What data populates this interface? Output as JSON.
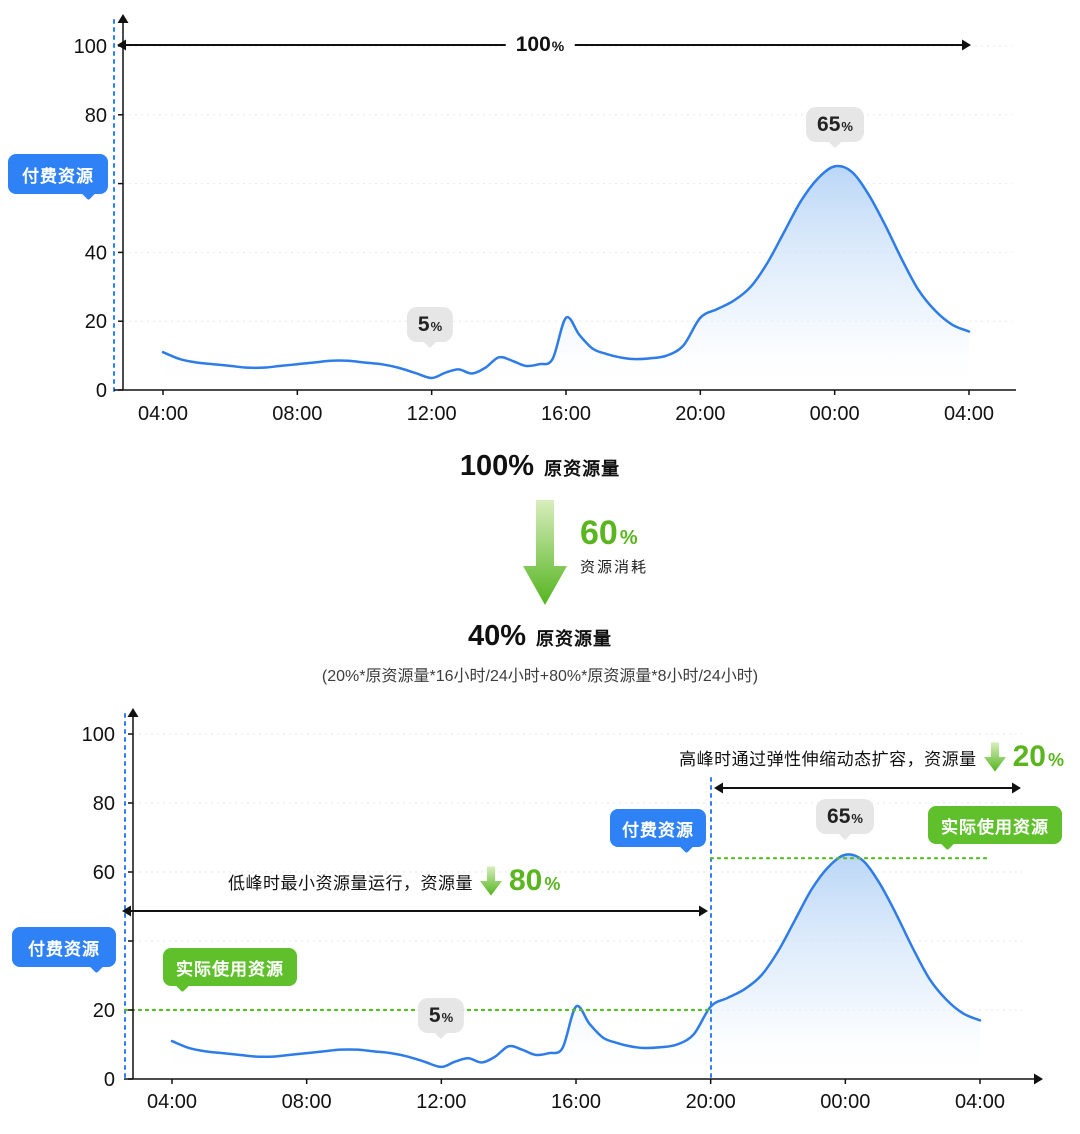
{
  "colors": {
    "line": "#2e7ce8",
    "area_top": "#b7d4f6",
    "grid": "#e7e7e7",
    "axis": "#111111",
    "blue_badge": "#2f82f6",
    "green_badge": "#5fc02c",
    "green_text": "#5ab51f",
    "tooltip_bg": "#e6e6e6",
    "dashed_blue": "#2f7ff7",
    "dotted_green": "#57bb23"
  },
  "middle": {
    "before": {
      "value": "100%",
      "label": "原资源量"
    },
    "consumption": {
      "value": "60",
      "unit": "%",
      "label": "资源消耗"
    },
    "after": {
      "value": "40%",
      "label": "原资源量"
    },
    "formula": "(20%*原资源量*16小时/24小时+80%*原资源量*8小时/24小时)"
  },
  "chart_data": [
    {
      "name": "original-paid-resource",
      "type": "area",
      "x_tick_labels": [
        "04:00",
        "08:00",
        "12:00",
        "16:00",
        "20:00",
        "00:00",
        "04:00"
      ],
      "x_tick_hours": [
        4,
        8,
        12,
        16,
        20,
        24,
        28
      ],
      "xlim_hours": [
        4,
        28
      ],
      "y_ticks": [
        0,
        20,
        40,
        60,
        80,
        100
      ],
      "ylim": [
        0,
        100
      ],
      "grid": true,
      "x_hours": [
        4,
        4.5,
        5,
        5.5,
        6,
        6.5,
        7,
        7.5,
        8,
        8.5,
        9,
        9.5,
        10,
        10.5,
        11,
        11.5,
        12,
        12.4,
        12.8,
        13.2,
        13.6,
        14,
        14.4,
        14.8,
        15.2,
        15.6,
        16,
        16.4,
        16.8,
        17.2,
        17.6,
        18,
        18.5,
        19,
        19.5,
        20,
        20.5,
        21,
        21.5,
        22,
        22.5,
        23,
        23.5,
        24,
        24.5,
        25,
        25.5,
        26,
        26.5,
        27,
        27.5,
        28
      ],
      "values": [
        11,
        9,
        8,
        7.5,
        7,
        6.5,
        6.5,
        7,
        7.5,
        8,
        8.5,
        8.5,
        8,
        7.5,
        6.5,
        5,
        3.5,
        5,
        6,
        4.8,
        6.5,
        9.5,
        8.5,
        7,
        7.5,
        9,
        21,
        16,
        12,
        10.5,
        9.5,
        9,
        9.2,
        10,
        13,
        21,
        23.5,
        26,
        30,
        37,
        46,
        55,
        61.5,
        65,
        63.5,
        57,
        48,
        38,
        29,
        23,
        19,
        17
      ],
      "annotations": {
        "span_arrow": {
          "value": "100",
          "unit": "%"
        },
        "paid_badge": "付费资源",
        "tooltip_low": {
          "value": "5",
          "unit": "%"
        },
        "tooltip_peak": {
          "value": "65",
          "unit": "%"
        }
      }
    },
    {
      "name": "elastic-paid-resource",
      "type": "area",
      "x_tick_labels": [
        "04:00",
        "08:00",
        "12:00",
        "16:00",
        "20:00",
        "00:00",
        "04:00"
      ],
      "x_tick_hours": [
        4,
        8,
        12,
        16,
        20,
        24,
        28
      ],
      "xlim_hours": [
        4,
        28
      ],
      "y_ticks": [
        0,
        20,
        40,
        60,
        80,
        100
      ],
      "ylim": [
        0,
        100
      ],
      "grid": true,
      "x_hours": [
        4,
        4.5,
        5,
        5.5,
        6,
        6.5,
        7,
        7.5,
        8,
        8.5,
        9,
        9.5,
        10,
        10.5,
        11,
        11.5,
        12,
        12.4,
        12.8,
        13.2,
        13.6,
        14,
        14.4,
        14.8,
        15.2,
        15.6,
        16,
        16.4,
        16.8,
        17.2,
        17.6,
        18,
        18.5,
        19,
        19.5,
        20,
        20.5,
        21,
        21.5,
        22,
        22.5,
        23,
        23.5,
        24,
        24.5,
        25,
        25.5,
        26,
        26.5,
        27,
        27.5,
        28
      ],
      "values": [
        11,
        9,
        8,
        7.5,
        7,
        6.5,
        6.5,
        7,
        7.5,
        8,
        8.5,
        8.5,
        8,
        7.5,
        6.5,
        5,
        3.5,
        5,
        6,
        4.8,
        6.5,
        9.5,
        8.5,
        7,
        7.5,
        9,
        21,
        16,
        12,
        10.5,
        9.5,
        9,
        9.2,
        10,
        13,
        21,
        23.5,
        26,
        30,
        37,
        46,
        55,
        61.5,
        65,
        63.5,
        57,
        48,
        38,
        29,
        23,
        19,
        17
      ],
      "annotations": {
        "paid_badge_low": "付费资源",
        "paid_badge_peak": "付费资源",
        "actual_badge_low": "实际使用资源",
        "actual_badge_peak": "实际使用资源",
        "low_note": {
          "text": "低峰时最小资源量运行，资源量",
          "value": "80",
          "unit": "%"
        },
        "high_note": {
          "text": "高峰时通过弹性伸缩动态扩容，资源量",
          "value": "20",
          "unit": "%"
        },
        "tooltip_low": {
          "value": "5",
          "unit": "%"
        },
        "tooltip_peak": {
          "value": "65",
          "unit": "%"
        },
        "dotted_low_level": 20,
        "dotted_peak_level": 64
      }
    }
  ]
}
